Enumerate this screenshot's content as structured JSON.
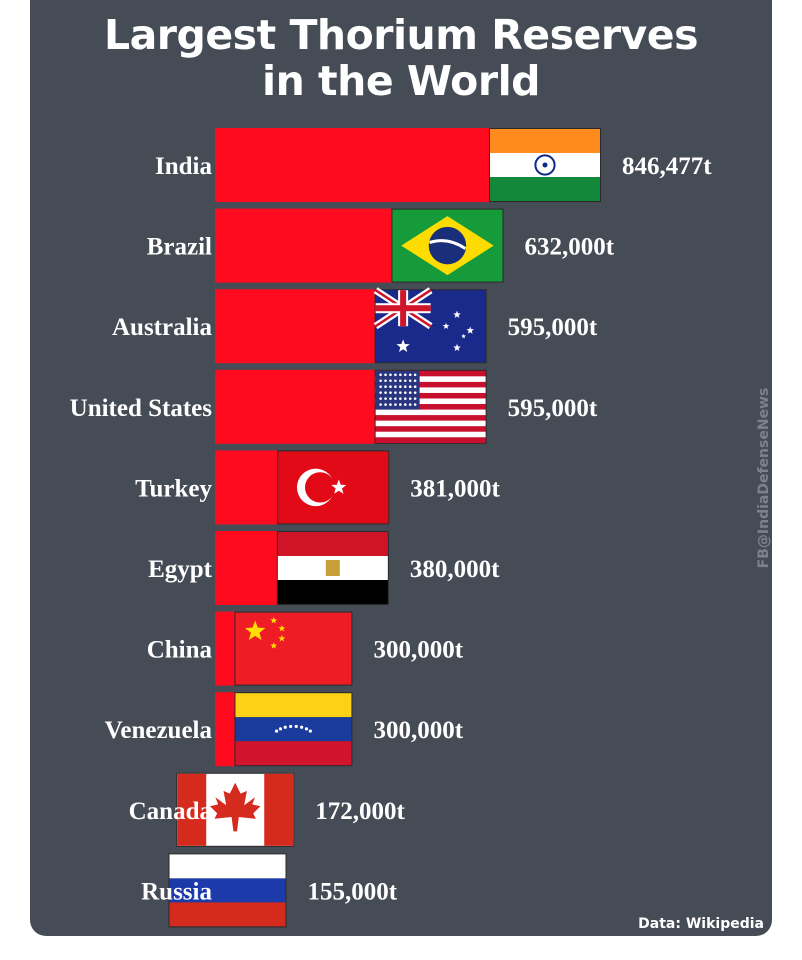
{
  "chart_data": {
    "type": "bar",
    "orientation": "horizontal",
    "title_lines": [
      "Largest Thorium Reserves",
      "in the World"
    ],
    "categories": [
      "India",
      "Brazil",
      "Australia",
      "United States",
      "Turkey",
      "Egypt",
      "China",
      "Venezuela",
      "Canada",
      "Russia"
    ],
    "values": [
      846477,
      632000,
      595000,
      595000,
      381000,
      380000,
      300000,
      300000,
      172000,
      155000
    ],
    "value_labels": [
      "846,477t",
      "632,000t",
      "595,000t",
      "595,000t",
      "381,000t",
      "380,000t",
      "300,000t",
      "300,000t",
      "172,000t",
      "155,000t"
    ],
    "flags": [
      "india-flag",
      "brazil-flag",
      "australia-flag",
      "usa-flag",
      "turkey-flag",
      "egypt-flag",
      "china-flag",
      "venezuela-flag",
      "canada-flag",
      "russia-flag"
    ],
    "bar_color": "#ff0a1e",
    "background_color": "#464c56",
    "grid": false,
    "legend": "none"
  },
  "watermark": "FB@IndiaDefenseNews",
  "source": "Data: Wikipedia"
}
